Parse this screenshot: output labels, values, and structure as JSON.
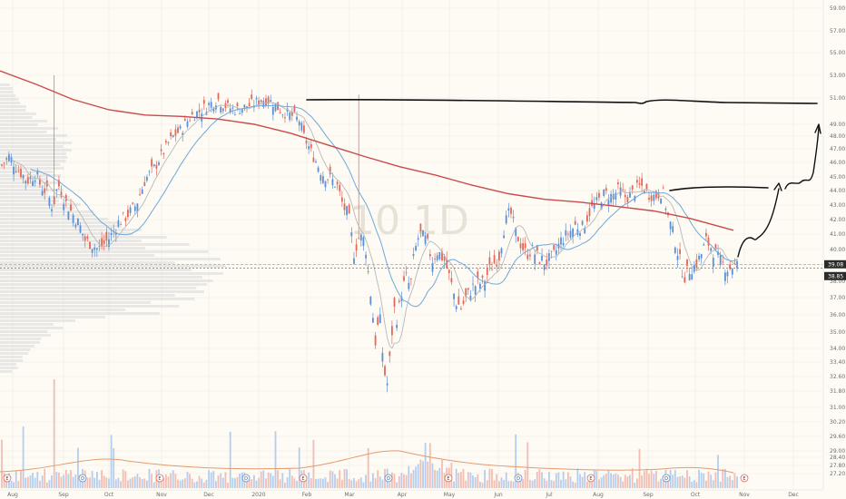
{
  "colors": {
    "background": "#fdfbf4",
    "grid": "#efece3",
    "up_candle": "#5b8fd6",
    "down_candle": "#e2685a",
    "ma_short": "#b8b8b8",
    "ma_mid": "#6fa8dc",
    "ma_long": "#c94b4b",
    "volume_ma": "#e59a6e",
    "drawing": "#111111",
    "volume_profile": "#d9d9d9",
    "price_tag_bg": "#2b2b2b",
    "price_tag_text": "#ffffff"
  },
  "watermark": "10 1D",
  "price_tags": [
    {
      "value": "39.08"
    },
    {
      "value": "38.85"
    }
  ],
  "chart_data": {
    "type": "candlestick",
    "title": "",
    "y_axis_ticks": [
      "59.00",
      "57.00",
      "55.00",
      "53.00",
      "51.00",
      "49.00",
      "48.00",
      "47.00",
      "46.00",
      "45.00",
      "44.00",
      "43.00",
      "42.00",
      "41.00",
      "40.00",
      "39.00",
      "38.00",
      "37.00",
      "36.00",
      "35.00",
      "34.00",
      "33.40",
      "32.60",
      "31.80",
      "31.00",
      "30.20",
      "29.60",
      "29.00",
      "28.40",
      "27.80",
      "27.20"
    ],
    "x_axis_ticks": [
      "Aug",
      "Sep",
      "Oct",
      "Nov",
      "Dec",
      "2020",
      "Feb",
      "Mar",
      "Apr",
      "May",
      "Jun",
      "Jul",
      "Aug",
      "Sep",
      "Oct",
      "Nov",
      "Dec"
    ],
    "last_price": 39.08,
    "reference_price": 38.85,
    "event_markers": [
      "E",
      "D",
      "E",
      "D",
      "E",
      "D",
      "E",
      "D",
      "E",
      "D",
      "E"
    ],
    "moving_averages": [
      {
        "name": "",
        "color": "#b8b8b8"
      },
      {
        "name": "",
        "color": "#6fa8dc"
      },
      {
        "name": "",
        "color": "#c94b4b"
      }
    ]
  }
}
